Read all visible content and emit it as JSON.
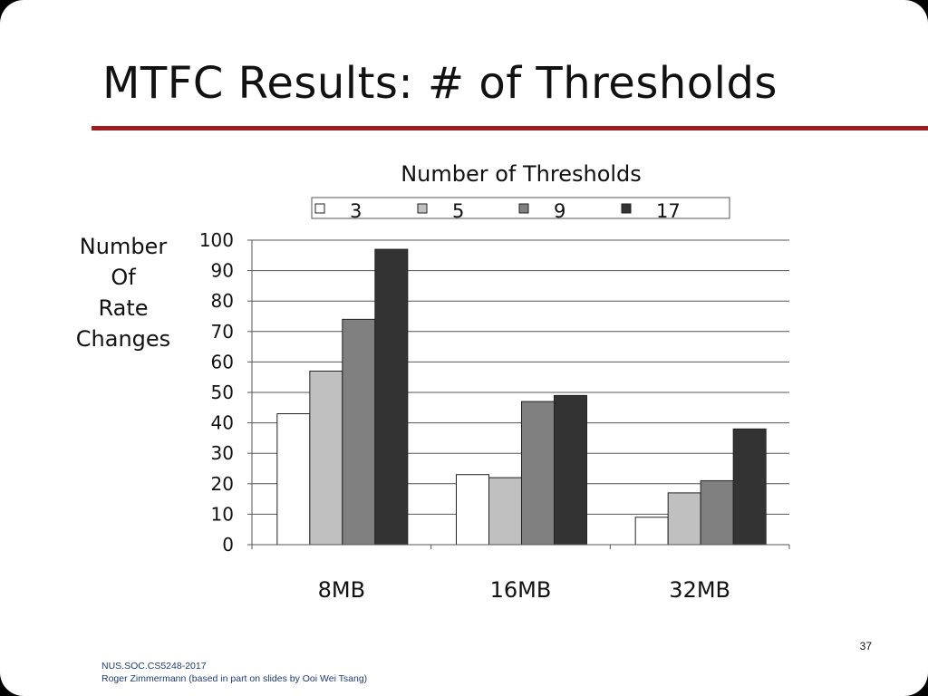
{
  "slide": {
    "title": "MTFC Results: # of Thresholds",
    "page_number": "37",
    "footer_line1": "NUS.SOC.CS5248-2017",
    "footer_line2": "Roger Zimmermann (based in part on slides by Ooi Wei Tsang)"
  },
  "colors": {
    "rule": "#9e1c20",
    "footer_text": "#1f3a78",
    "grid": "#555555",
    "series": [
      "#ffffff",
      "#c0c0c0",
      "#808080",
      "#333333"
    ]
  },
  "chart_data": {
    "type": "bar",
    "title": "Number of Thresholds",
    "ylabel_lines": [
      "Number",
      "Of",
      "Rate",
      "Changes"
    ],
    "xlabel": "",
    "categories": [
      "8MB",
      "16MB",
      "32MB"
    ],
    "series": [
      {
        "name": "3",
        "values": [
          43,
          23,
          9
        ]
      },
      {
        "name": "5",
        "values": [
          57,
          22,
          17
        ]
      },
      {
        "name": "9",
        "values": [
          74,
          47,
          21
        ]
      },
      {
        "name": "17",
        "values": [
          97,
          49,
          38
        ]
      }
    ],
    "y_ticks": [
      "0",
      "10",
      "20",
      "30",
      "40",
      "50",
      "60",
      "70",
      "80",
      "90",
      "100"
    ],
    "ylim": [
      0,
      100
    ],
    "grid": true,
    "legend_position": "top"
  }
}
